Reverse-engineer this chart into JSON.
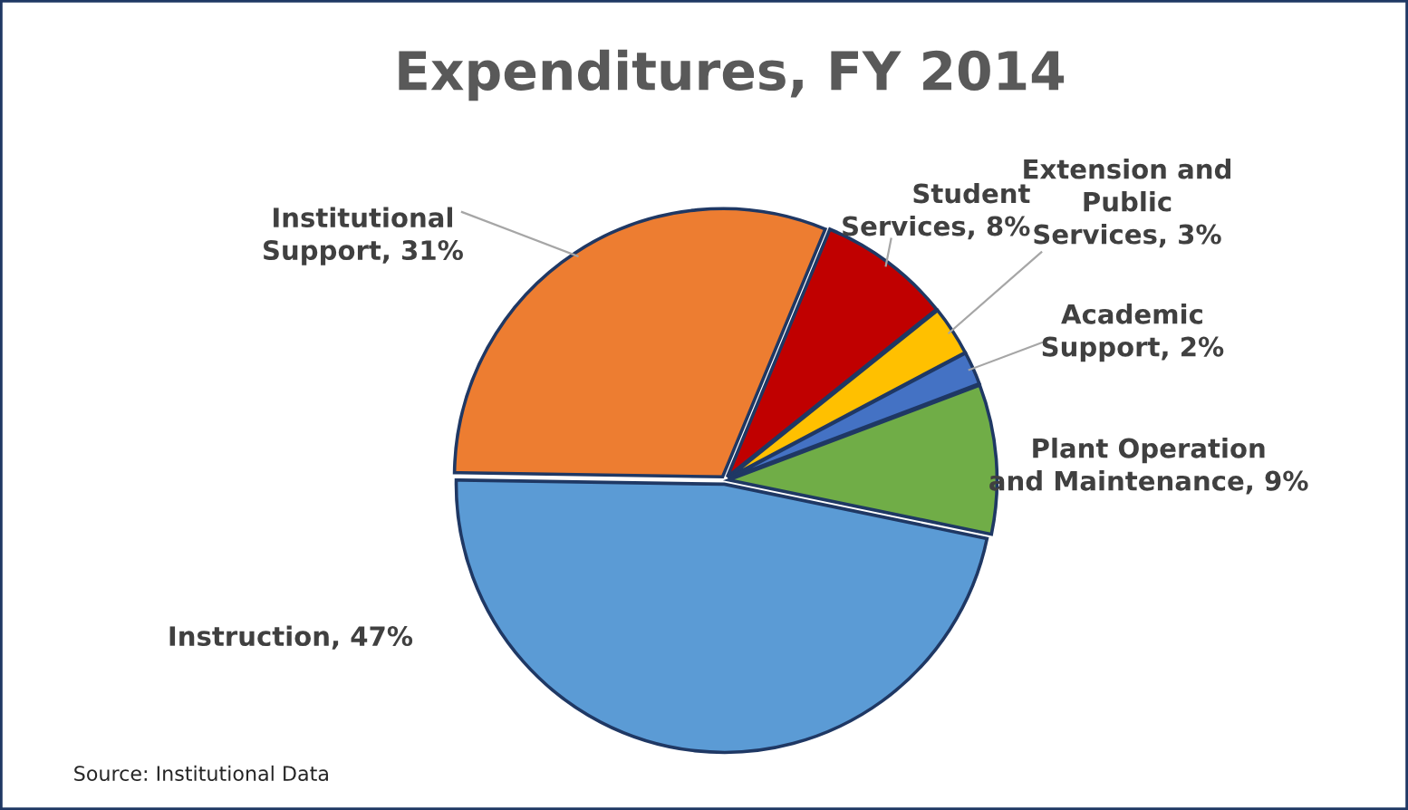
{
  "chart_data": {
    "type": "pie",
    "title": "Expenditures, FY 2014",
    "categories": [
      "Student Services",
      "Extension and Public Services",
      "Academic Support",
      "Plant Operation and Maintenance",
      "Instruction",
      "Institutional Support"
    ],
    "values": [
      8,
      3,
      2,
      9,
      47,
      31
    ],
    "colors": [
      "#c00000",
      "#ffc000",
      "#4472c4",
      "#70ad47",
      "#5b9bd5",
      "#ed7d31"
    ],
    "value_labels": [
      "8%",
      "3%",
      "2%",
      "9%",
      "47%",
      "31%"
    ],
    "annotations": [
      "Source: Institutional Data"
    ],
    "legend": false
  }
}
